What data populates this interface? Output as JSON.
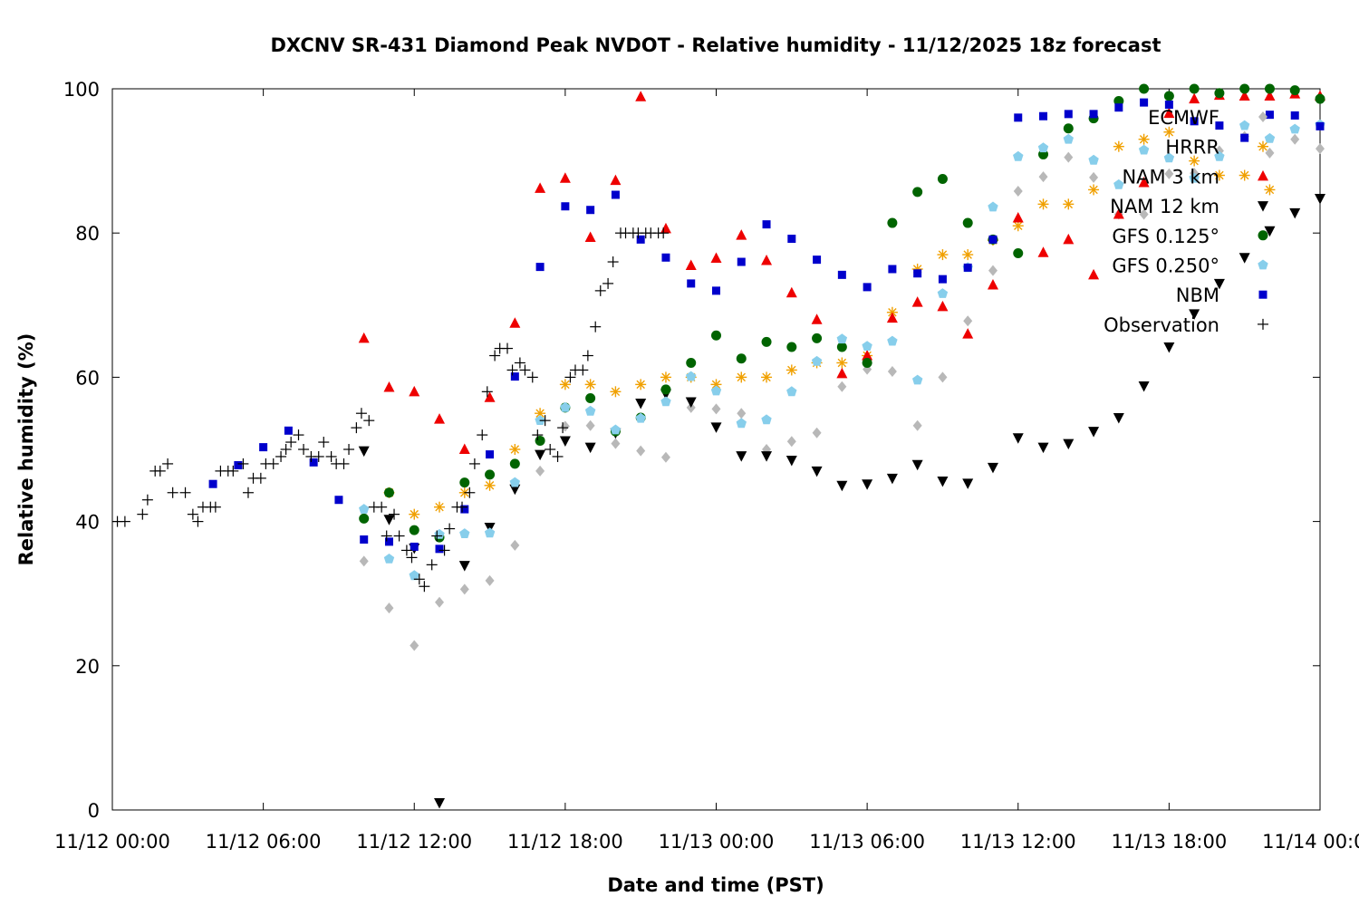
{
  "chart_data": {
    "type": "scatter",
    "title": "DXCNV SR-431 Diamond Peak NVDOT - Relative humidity - 11/12/2025 18z forecast",
    "xlabel": "Date and time (PST)",
    "ylabel": "Relative humidity (%)",
    "x_unit": "hours since 11/12 00:00 PST",
    "xlim": [
      0,
      48
    ],
    "ylim": [
      0,
      100
    ],
    "x_ticks": [
      {
        "value": 0,
        "label": "11/12 00:00"
      },
      {
        "value": 6,
        "label": "11/12 06:00"
      },
      {
        "value": 12,
        "label": "11/12 12:00"
      },
      {
        "value": 18,
        "label": "11/12 18:00"
      },
      {
        "value": 24,
        "label": "11/13 00:00"
      },
      {
        "value": 30,
        "label": "11/13 06:00"
      },
      {
        "value": 36,
        "label": "11/13 12:00"
      },
      {
        "value": 42,
        "label": "11/13 18:00"
      },
      {
        "value": 48,
        "label": "11/14 00:00"
      }
    ],
    "y_ticks": [
      {
        "value": 0,
        "label": "0"
      },
      {
        "value": 20,
        "label": "20"
      },
      {
        "value": 40,
        "label": "40"
      },
      {
        "value": 60,
        "label": "60"
      },
      {
        "value": 80,
        "label": "80"
      },
      {
        "value": 100,
        "label": "100"
      }
    ],
    "grid": false,
    "legend_position": "top-right",
    "series": [
      {
        "name": "ECMWF",
        "marker": "diamond",
        "color": "#b8b8b8",
        "x": [
          10,
          11,
          12,
          13,
          14,
          15,
          16,
          17,
          18,
          19,
          20,
          21,
          22,
          23,
          24,
          25,
          26,
          27,
          28,
          29,
          30,
          31,
          32,
          33,
          34,
          35,
          36,
          37,
          38,
          39,
          40,
          41,
          42,
          43,
          44,
          45,
          46,
          47,
          48
        ],
        "y": [
          34.5,
          28,
          22.8,
          28.8,
          30.6,
          31.8,
          36.7,
          47,
          53.2,
          53.3,
          50.8,
          49.8,
          48.9,
          55.8,
          55.6,
          55,
          50,
          51.1,
          52.3,
          58.7,
          61.1,
          60.8,
          53.3,
          60,
          67.8,
          74.8,
          85.8,
          87.8,
          90.5,
          87.7,
          82.6,
          82.6,
          88.2,
          88.3,
          91.4,
          93.4,
          91.1,
          93,
          91.7
        ]
      },
      {
        "name": "HRRR",
        "marker": "asterisk",
        "color": "#f0a000",
        "x": [
          11,
          12,
          13,
          14,
          15,
          16,
          17,
          18,
          19,
          20,
          21,
          22,
          23,
          24,
          25,
          26,
          27,
          28,
          29,
          30,
          31,
          32,
          33,
          34,
          35,
          36,
          37,
          38,
          39,
          40,
          41,
          42,
          43,
          44,
          45,
          46
        ],
        "y": [
          44,
          41,
          42,
          44,
          45,
          50,
          55,
          59,
          59,
          58,
          59,
          60,
          60,
          59,
          60,
          60,
          61,
          62,
          62,
          63,
          69,
          75,
          77,
          77,
          79,
          81,
          84,
          84,
          86,
          92,
          93,
          94,
          90,
          88,
          88,
          86
        ]
      },
      {
        "name": "NAM 3 km",
        "marker": "triangle",
        "color": "#ee0000",
        "x": [
          10,
          11,
          12,
          13,
          14,
          15,
          16,
          17,
          18,
          19,
          20,
          21,
          22,
          23,
          24,
          25,
          26,
          27,
          28,
          29,
          30,
          31,
          32,
          33,
          34,
          35,
          36,
          37,
          38,
          39,
          40,
          41,
          42,
          43,
          44,
          45,
          46,
          47,
          48
        ],
        "y": [
          65.4,
          58.6,
          58,
          54.2,
          50,
          57.2,
          67.5,
          86.2,
          87.6,
          79.4,
          87.3,
          98.9,
          80.6,
          75.5,
          76.5,
          79.7,
          76.2,
          71.7,
          68,
          60.5,
          63,
          68.2,
          70.4,
          69.8,
          66,
          72.8,
          82.1,
          77.3,
          79.1,
          74.2,
          82.6,
          87,
          96.6,
          98.6,
          99.1,
          99,
          99,
          99.3,
          99
        ]
      },
      {
        "name": "NAM 12 km",
        "marker": "tri-down",
        "color": "#000000",
        "x": [
          10,
          11,
          12,
          13,
          14,
          15,
          16,
          17,
          18,
          19,
          20,
          21,
          22,
          23,
          24,
          25,
          26,
          27,
          28,
          29,
          30,
          31,
          32,
          33,
          34,
          35,
          36,
          37,
          38,
          39,
          40,
          41,
          42,
          43,
          44,
          45,
          46,
          47,
          48
        ],
        "y": [
          49.8,
          40.3,
          36.3,
          1,
          33.9,
          39.2,
          44.5,
          49.3,
          51.2,
          50.3,
          52.3,
          56.4,
          57.7,
          56.6,
          53.1,
          49.1,
          49.1,
          48.5,
          47,
          45,
          45.2,
          46,
          47.9,
          45.6,
          45.3,
          47.5,
          51.6,
          50.3,
          50.8,
          52.5,
          54.4,
          58.8,
          64.2,
          68.8,
          73,
          76.6,
          80.3,
          82.8,
          84.8
        ]
      },
      {
        "name": "GFS 0.125°",
        "marker": "circle",
        "color": "#006400",
        "x": [
          10,
          11,
          12,
          13,
          14,
          15,
          16,
          17,
          18,
          19,
          20,
          21,
          22,
          23,
          24,
          25,
          26,
          27,
          28,
          29,
          30,
          31,
          32,
          33,
          34,
          35,
          36,
          37,
          38,
          39,
          40,
          41,
          42,
          43,
          44,
          45,
          46,
          47,
          48
        ],
        "y": [
          40.4,
          44,
          38.8,
          37.8,
          45.4,
          46.5,
          48,
          51.2,
          55.8,
          57.1,
          52.5,
          54.4,
          58.3,
          62,
          65.8,
          62.6,
          64.9,
          64.2,
          65.4,
          64.2,
          62,
          81.4,
          85.7,
          87.5,
          81.4,
          79.1,
          77.2,
          90.9,
          94.5,
          95.9,
          98.3,
          100,
          99,
          100,
          99.4,
          100,
          100,
          99.8,
          98.6
        ]
      },
      {
        "name": "GFS 0.250°",
        "marker": "pentagon",
        "color": "#87ceeb",
        "x": [
          10,
          11,
          12,
          13,
          14,
          15,
          16,
          17,
          18,
          19,
          20,
          21,
          22,
          23,
          24,
          25,
          26,
          27,
          28,
          29,
          30,
          31,
          32,
          33,
          34,
          35,
          36,
          37,
          38,
          39,
          40,
          41,
          42,
          43,
          44,
          45,
          46,
          47,
          48
        ],
        "y": [
          41.7,
          34.8,
          32.5,
          38.2,
          38.3,
          38.4,
          45.4,
          54,
          55.8,
          55.3,
          52.7,
          54.3,
          56.6,
          60.1,
          58.1,
          53.6,
          54.1,
          58,
          62.2,
          65.3,
          64.3,
          65,
          59.6,
          71.6,
          75.2,
          83.6,
          90.6,
          91.8,
          93,
          90.1,
          86.7,
          91.5,
          90.4,
          87.6,
          90.6,
          94.9,
          93.1,
          94.4,
          95
        ]
      },
      {
        "name": "NBM",
        "marker": "square",
        "color": "#0000cc",
        "x": [
          1,
          2,
          3,
          4,
          5,
          6,
          7,
          8,
          9,
          10,
          11,
          12,
          13,
          14,
          15,
          16,
          17,
          18,
          19,
          20,
          21,
          22,
          23,
          24,
          25,
          26,
          27,
          28,
          29,
          30,
          31,
          32,
          33,
          34,
          35,
          36,
          37,
          38,
          39,
          40,
          41,
          42,
          43,
          44,
          45,
          46,
          47,
          48
        ],
        "y": [
          null,
          null,
          null,
          45.2,
          47.8,
          50.3,
          52.6,
          48.2,
          43,
          37.5,
          37.2,
          36.5,
          36.2,
          41.7,
          49.3,
          60.1,
          75.3,
          83.7,
          83.2,
          85.3,
          79.1,
          76.6,
          73,
          72,
          76,
          81.2,
          79.2,
          76.3,
          74.2,
          72.5,
          75,
          74.4,
          73.6,
          75.2,
          79.1,
          96,
          96.2,
          96.5,
          96.5,
          97.4,
          98.1,
          97.8,
          95.5,
          94.9,
          93.2,
          96.4,
          96.3,
          94.8
        ]
      },
      {
        "name": "Observation",
        "marker": "plus",
        "color": "#000000",
        "x": [
          0.2,
          0.5,
          1.2,
          1.4,
          1.7,
          1.9,
          2.2,
          2.4,
          2.9,
          3.2,
          3.4,
          3.6,
          3.9,
          4.1,
          4.3,
          4.6,
          4.8,
          5.2,
          5.4,
          5.6,
          5.9,
          6.1,
          6.4,
          6.7,
          6.9,
          7.1,
          7.4,
          7.6,
          7.9,
          8.2,
          8.4,
          8.7,
          8.9,
          9.2,
          9.4,
          9.7,
          9.9,
          10.2,
          10.4,
          10.7,
          10.9,
          11.2,
          11.4,
          11.7,
          11.9,
          12.2,
          12.4,
          12.7,
          12.9,
          13.2,
          13.4,
          13.7,
          13.9,
          14.2,
          14.4,
          14.7,
          14.9,
          15.2,
          15.4,
          15.7,
          15.9,
          16.2,
          16.4,
          16.7,
          16.9,
          17.2,
          17.4,
          17.7,
          17.9,
          18.2,
          18.4,
          18.7,
          18.9,
          19.2,
          19.4,
          19.7,
          19.9,
          20.2,
          20.4,
          20.7,
          20.9,
          21.2,
          21.4,
          21.7,
          21.9
        ],
        "y": [
          40,
          40,
          41,
          43,
          47,
          47,
          48,
          44,
          44,
          41,
          40,
          42,
          42,
          42,
          47,
          47,
          47,
          48,
          44,
          46,
          46,
          48,
          48,
          49,
          50,
          51,
          52,
          50,
          49,
          49,
          51,
          49,
          48,
          48,
          50,
          53,
          55,
          54,
          42,
          42,
          38,
          41,
          38,
          36,
          35,
          32,
          31,
          34,
          38,
          36,
          39,
          42,
          42,
          44,
          48,
          52,
          58,
          63,
          64,
          64,
          61,
          62,
          61,
          60,
          52,
          54,
          50,
          49,
          53,
          60,
          61,
          61,
          63,
          67,
          72,
          73,
          76,
          80,
          80,
          80,
          80,
          80,
          80,
          80,
          80
        ]
      }
    ]
  }
}
